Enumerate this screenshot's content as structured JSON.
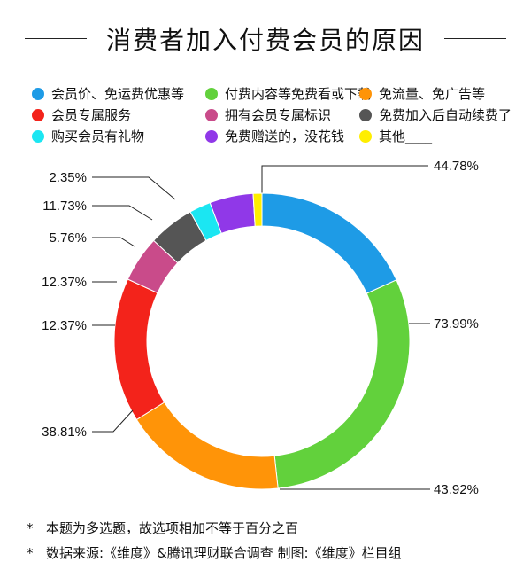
{
  "header": {
    "title": "消费者加入付费会员的原因"
  },
  "chart_data": {
    "type": "donut",
    "title": "消费者加入付费会员的原因",
    "series": [
      {
        "name": "会员价、免运费优惠等",
        "value": 44.78,
        "label": "44.78%",
        "color": "#1e9be6"
      },
      {
        "name": "付费内容等免费看或下载",
        "value": 73.99,
        "label": "73.99%",
        "color": "#62d13c"
      },
      {
        "name": "免流量、免广告等",
        "value": 43.92,
        "label": "43.92%",
        "color": "#ff9408"
      },
      {
        "name": "会员专属服务",
        "value": 38.81,
        "label": "38.81%",
        "color": "#f3231b"
      },
      {
        "name": "拥有会员专属标识",
        "value": 12.37,
        "label": "12.37%",
        "color": "#c94b8a"
      },
      {
        "name": "免费加入后自动续费了",
        "value": 12.37,
        "label": "12.37%",
        "color": "#555555"
      },
      {
        "name": "购买会员有礼物",
        "value": 5.76,
        "label": "5.76%",
        "color": "#1be6f2"
      },
      {
        "name": "免费赠送的，没花钱",
        "value": 11.73,
        "label": "11.73%",
        "color": "#9038e8"
      },
      {
        "name": "其他____",
        "value": 2.35,
        "label": "2.35%",
        "color": "#ffee00"
      }
    ],
    "legend_position": "top"
  },
  "notes": [
    {
      "star": "*",
      "text": "本题为多选题，故选项相加不等于百分之百"
    },
    {
      "star": "*",
      "text": "数据来源:《维度》&腾讯理财联合调查    制图:《维度》栏目组"
    }
  ]
}
